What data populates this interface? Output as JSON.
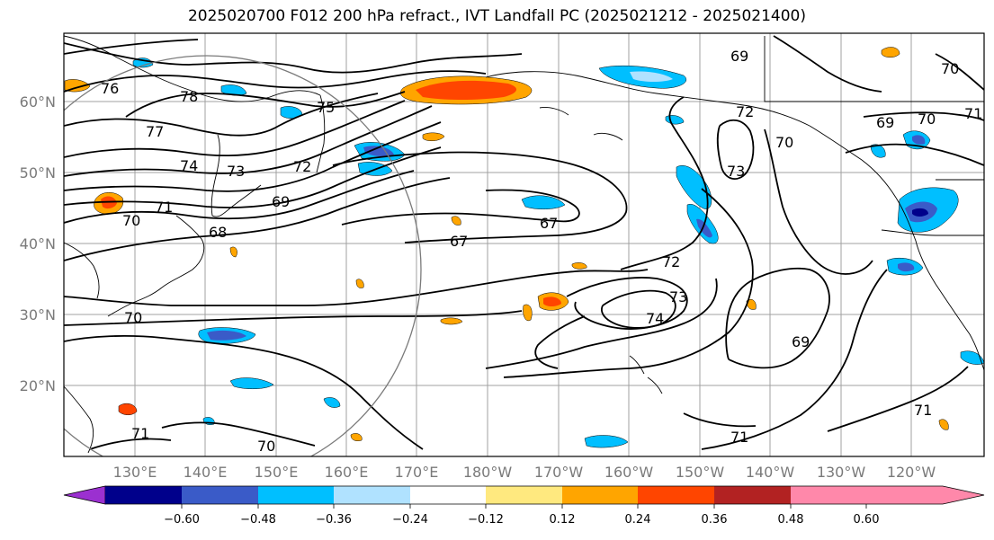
{
  "title": "2025020700 F012 200 hPa refract., IVT Landfall PC (2025021212 - 2025021400)",
  "lat_labels": [
    "60°N",
    "50°N",
    "40°N",
    "30°N",
    "20°N"
  ],
  "lon_labels": [
    "130°E",
    "140°E",
    "150°E",
    "160°E",
    "170°E",
    "180°W",
    "170°W",
    "160°W",
    "150°W",
    "140°W",
    "130°W",
    "120°W"
  ],
  "contour_labels": [
    "76",
    "78",
    "75",
    "77",
    "74",
    "73",
    "72",
    "71",
    "70",
    "69",
    "68",
    "67",
    "67",
    "72",
    "73",
    "74",
    "73",
    "70",
    "69",
    "70",
    "71",
    "69",
    "72",
    "70",
    "71",
    "71",
    "70",
    "70",
    "69",
    "71"
  ],
  "colorbar": {
    "tick_labels": [
      "−0.60",
      "−0.48",
      "−0.36",
      "−0.24",
      "−0.12",
      "0.12",
      "0.24",
      "0.36",
      "0.48",
      "0.60"
    ],
    "colors": [
      "#9b30d0",
      "#00008b",
      "#3a5bc8",
      "#00bfff",
      "#b0e2ff",
      "#ffffff",
      "#ffe97f",
      "#ffa500",
      "#ff4500",
      "#b22222",
      "#ff88aa"
    ]
  }
}
